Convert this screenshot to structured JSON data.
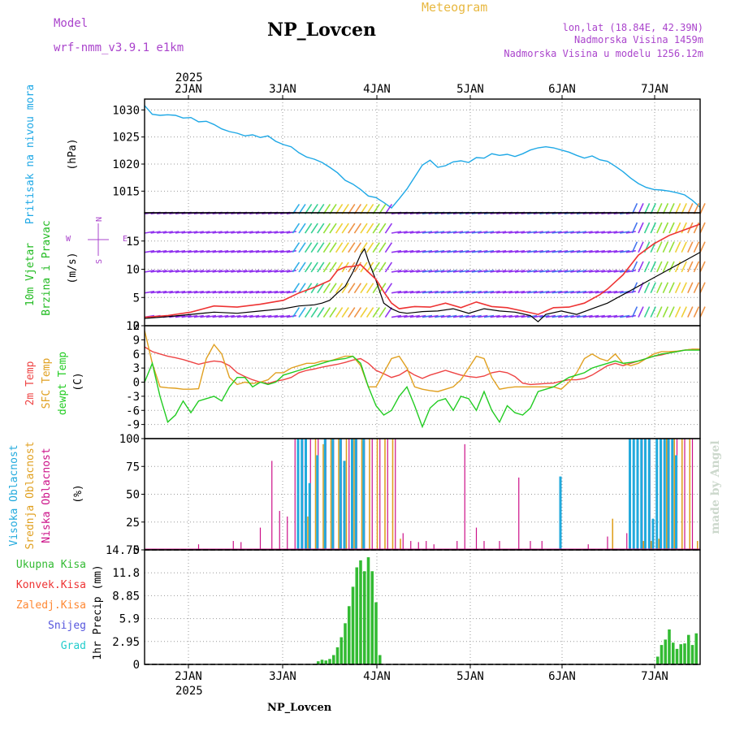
{
  "header": {
    "model_label": "Model",
    "model_name": "wrf-nmm_v3.9.1 e1km",
    "title": "NP_Lovcen",
    "meteogram_label": "Meteogram",
    "lonlat": "lon,lat (18.84E, 42.39N)",
    "elevation": "Nadmorska Visina 1459m",
    "model_elevation": "Nadmorska Visina u modelu 1256.12m",
    "footer_station": "NP_Lovcen",
    "watermark": "made by Angel"
  },
  "colors": {
    "pressure": "#1ea8e6",
    "temp2m": "#ee4444",
    "sfc_temp": "#e0a020",
    "dewpt": "#22cc22",
    "wind_avg": "#000000",
    "wind_gust": "#ee3333",
    "cloud_high": "#22aadd",
    "cloud_mid": "#e0a020",
    "cloud_low": "#cc1188",
    "precip_total": "#33bb33",
    "precip_conv": "#ee3333",
    "precip_frozen": "#ff8833",
    "precip_snow": "#5555dd",
    "precip_hail": "#22cccc",
    "wind_label": "#22bb22",
    "compass": "#aa44cc"
  },
  "chart_data": [
    {
      "type": "line",
      "panel": "pressure",
      "ylabel": "Pritisak na nivou mora",
      "unit": "(hPa)",
      "ylim": [
        1011,
        1032
      ],
      "yticks": [
        "1015",
        "1020",
        "1025",
        "1030"
      ],
      "x": [
        0,
        0.5,
        2,
        4,
        6,
        8,
        10,
        12,
        14,
        16,
        18,
        20,
        22,
        24,
        26,
        28,
        30,
        32,
        34,
        36,
        38,
        40,
        42,
        44,
        46,
        48,
        50,
        52,
        54,
        56,
        58,
        60,
        62,
        64,
        66,
        68,
        70,
        72,
        74,
        76,
        78,
        80,
        82,
        84,
        86,
        88,
        90,
        92,
        94,
        96,
        98,
        100,
        102,
        104,
        106,
        108,
        110,
        112,
        114,
        116,
        118,
        120,
        122,
        124,
        126,
        128,
        130,
        132,
        134,
        136,
        138,
        140,
        142,
        144
      ],
      "values": [
        1030.8,
        1030.4,
        1029.2,
        1029.0,
        1029.1,
        1029.0,
        1028.5,
        1028.6,
        1027.8,
        1027.9,
        1027.3,
        1026.5,
        1026.0,
        1025.7,
        1025.2,
        1025.4,
        1024.9,
        1025.2,
        1024.2,
        1023.6,
        1023.2,
        1022.1,
        1021.3,
        1020.9,
        1020.3,
        1019.4,
        1018.4,
        1017.0,
        1016.3,
        1015.3,
        1014.1,
        1013.8,
        1012.9,
        1011.9,
        1013.6,
        1015.4,
        1017.6,
        1019.8,
        1020.7,
        1019.4,
        1019.7,
        1020.4,
        1020.6,
        1020.3,
        1021.2,
        1021.1,
        1021.9,
        1021.6,
        1021.8,
        1021.4,
        1021.9,
        1022.6,
        1023.0,
        1023.2,
        1023.0,
        1022.6,
        1022.2,
        1021.6,
        1021.1,
        1021.5,
        1020.8,
        1020.5,
        1019.6,
        1018.6,
        1017.4,
        1016.4,
        1015.7,
        1015.3,
        1015.2,
        1015.0,
        1014.7,
        1014.3,
        1013.3,
        1012.0
      ]
    },
    {
      "type": "line",
      "panel": "wind",
      "ylabel": "10m Vjetar Brzina i Pravac",
      "unit": "(m/s)",
      "ylim": [
        0,
        20
      ],
      "yticks": [
        "0",
        "5",
        "10",
        "15"
      ],
      "compass": {
        "n": "N",
        "s": "S",
        "e": "E",
        "w": "W"
      },
      "series": [
        {
          "key": "avg",
          "x": [
            0,
            6,
            12,
            18,
            24,
            30,
            36,
            40,
            44,
            46,
            48,
            50,
            52,
            54,
            56,
            57,
            58,
            60,
            62,
            64,
            66,
            68,
            72,
            76,
            80,
            84,
            88,
            92,
            96,
            100,
            102,
            104,
            108,
            112,
            116,
            120,
            124,
            128,
            132,
            136,
            140,
            144
          ],
          "values": [
            1.3,
            1.6,
            2.0,
            2.4,
            2.2,
            2.6,
            3.0,
            3.5,
            3.7,
            4.0,
            4.5,
            5.8,
            7.0,
            9.5,
            12.6,
            13.6,
            11.5,
            8.0,
            4.0,
            3.0,
            2.4,
            2.2,
            2.5,
            2.6,
            3.0,
            2.2,
            3.0,
            2.6,
            2.4,
            1.8,
            0.7,
            2.0,
            2.6,
            2.0,
            3.0,
            4.0,
            5.5,
            7.0,
            8.5,
            10.0,
            11.5,
            13.0
          ]
        },
        {
          "key": "gust",
          "x": [
            0,
            6,
            12,
            18,
            24,
            30,
            36,
            40,
            44,
            48,
            50,
            52,
            54,
            56,
            58,
            60,
            62,
            64,
            66,
            70,
            74,
            78,
            82,
            86,
            90,
            94,
            98,
            102,
            106,
            110,
            114,
            118,
            120,
            124,
            128,
            132,
            136,
            140,
            144
          ],
          "values": [
            1.5,
            1.8,
            2.4,
            3.5,
            3.3,
            3.8,
            4.5,
            5.8,
            6.8,
            8.0,
            9.8,
            10.4,
            10.5,
            10.8,
            9.5,
            8.2,
            6.0,
            4.0,
            3.0,
            3.4,
            3.3,
            4.0,
            3.2,
            4.2,
            3.4,
            3.2,
            2.6,
            2.0,
            3.2,
            3.3,
            4.0,
            5.5,
            6.5,
            9.0,
            12.5,
            14.5,
            16.0,
            17.0,
            18.0
          ]
        }
      ]
    },
    {
      "type": "line",
      "panel": "temperature",
      "ylabels": [
        "2m Temp",
        "SFC Temp",
        "dewpt Temp"
      ],
      "unit": "(C)",
      "ylim": [
        -12,
        12
      ],
      "yticks": [
        "-9",
        "-6",
        "-3",
        "0",
        "3",
        "6",
        "9",
        "12"
      ],
      "series": [
        {
          "key": "t2m",
          "x": [
            0,
            2,
            4,
            6,
            8,
            10,
            12,
            14,
            16,
            18,
            20,
            22,
            24,
            26,
            28,
            30,
            32,
            34,
            36,
            38,
            40,
            42,
            44,
            46,
            48,
            50,
            52,
            54,
            56,
            58,
            60,
            62,
            64,
            66,
            68,
            70,
            72,
            74,
            76,
            78,
            80,
            82,
            84,
            86,
            88,
            90,
            92,
            94,
            96,
            98,
            100,
            102,
            104,
            106,
            108,
            110,
            112,
            114,
            116,
            118,
            120,
            122,
            124,
            126,
            128,
            130,
            132,
            134,
            136,
            138,
            140,
            142,
            144
          ],
          "values": [
            7.5,
            6.5,
            6.0,
            5.5,
            5.2,
            4.8,
            4.3,
            3.8,
            4.2,
            4.5,
            4.3,
            3.5,
            2.0,
            1.2,
            0.5,
            0.0,
            -0.3,
            0.2,
            0.5,
            1.0,
            2.0,
            2.5,
            2.8,
            3.2,
            3.5,
            3.8,
            4.2,
            4.7,
            5.0,
            4.0,
            2.5,
            1.8,
            1.0,
            1.5,
            2.5,
            1.5,
            0.8,
            1.5,
            2.0,
            2.5,
            2.0,
            1.5,
            1.2,
            1.0,
            1.3,
            2.0,
            2.3,
            2.0,
            1.2,
            -0.2,
            -0.5,
            -0.4,
            -0.3,
            -0.2,
            0.2,
            0.5,
            0.5,
            0.8,
            1.5,
            2.5,
            3.5,
            4.0,
            3.5,
            4.0,
            4.5,
            5.0,
            5.5,
            5.8,
            6.2,
            6.5,
            6.8,
            7.0,
            7.0
          ]
        },
        {
          "key": "sfc",
          "x": [
            0,
            2,
            4,
            6,
            8,
            10,
            12,
            14,
            16,
            18,
            20,
            22,
            24,
            26,
            28,
            30,
            32,
            34,
            36,
            38,
            40,
            42,
            44,
            46,
            48,
            50,
            52,
            54,
            56,
            58,
            60,
            62,
            64,
            66,
            68,
            70,
            72,
            74,
            76,
            78,
            80,
            82,
            84,
            86,
            88,
            90,
            92,
            94,
            96,
            98,
            100,
            102,
            104,
            106,
            108,
            110,
            112,
            114,
            116,
            118,
            120,
            122,
            124,
            126,
            128,
            130,
            132,
            134,
            136,
            138,
            140,
            142,
            144
          ],
          "values": [
            11.0,
            4.0,
            -1.0,
            -1.2,
            -1.3,
            -1.5,
            -1.5,
            -1.4,
            5.0,
            8.0,
            6.0,
            1.0,
            -0.5,
            0.0,
            -0.3,
            0.0,
            0.5,
            2.0,
            2.0,
            3.0,
            3.5,
            4.0,
            4.0,
            4.5,
            4.5,
            5.0,
            5.5,
            5.5,
            3.5,
            -1.0,
            -1.0,
            2.0,
            5.0,
            5.5,
            3.0,
            -1.0,
            -1.5,
            -1.8,
            -2.0,
            -1.5,
            -1.0,
            0.5,
            3.0,
            5.5,
            5.0,
            1.0,
            -1.5,
            -1.2,
            -1.0,
            -1.0,
            -1.0,
            -1.0,
            -1.0,
            -1.0,
            -1.5,
            0.0,
            2.0,
            5.0,
            6.0,
            5.0,
            4.5,
            6.0,
            4.0,
            3.5,
            4.0,
            5.0,
            6.0,
            6.5,
            6.5,
            6.6,
            6.8,
            7.0,
            7.0
          ]
        },
        {
          "key": "dew",
          "x": [
            0,
            2,
            4,
            6,
            8,
            10,
            12,
            14,
            16,
            18,
            20,
            22,
            24,
            26,
            28,
            30,
            32,
            34,
            36,
            38,
            40,
            42,
            44,
            46,
            48,
            50,
            52,
            54,
            56,
            58,
            60,
            62,
            64,
            66,
            68,
            70,
            72,
            74,
            76,
            78,
            80,
            82,
            84,
            86,
            88,
            90,
            92,
            94,
            96,
            98,
            100,
            102,
            104,
            106,
            108,
            110,
            112,
            114,
            116,
            118,
            120,
            122,
            124,
            126,
            128,
            130,
            132,
            134,
            136,
            138,
            140,
            142,
            144
          ],
          "values": [
            0.0,
            4.0,
            -3.0,
            -8.5,
            -7.0,
            -4.0,
            -6.5,
            -4.0,
            -3.5,
            -3.0,
            -4.0,
            -1.0,
            1.0,
            1.0,
            -1.0,
            0.0,
            -0.5,
            0.0,
            1.5,
            2.0,
            2.5,
            3.0,
            3.5,
            4.0,
            4.5,
            4.8,
            5.0,
            5.5,
            4.0,
            -1.0,
            -5.0,
            -7.0,
            -6.0,
            -3.0,
            -1.0,
            -5.0,
            -9.5,
            -5.5,
            -4.0,
            -3.5,
            -6.0,
            -3.0,
            -3.5,
            -6.0,
            -2.0,
            -6.0,
            -8.5,
            -5.0,
            -6.5,
            -7.0,
            -5.5,
            -2.0,
            -1.5,
            -1.0,
            0.0,
            1.0,
            1.5,
            2.0,
            3.0,
            3.5,
            4.0,
            4.5,
            4.0,
            4.2,
            4.5,
            5.0,
            5.5,
            6.0,
            6.2,
            6.5,
            6.8,
            6.8,
            6.8
          ]
        }
      ]
    },
    {
      "type": "bar",
      "panel": "clouds",
      "ylabels": [
        "Visoka Oblacnost",
        "Srednja Oblacnost",
        "Niska Oblacnost"
      ],
      "unit": "(%)",
      "ylim": [
        0,
        100
      ],
      "yticks": [
        "0",
        "25",
        "50",
        "75",
        "100"
      ],
      "series": [
        {
          "key": "low",
          "x": [
            14,
            23,
            25,
            30,
            33,
            35,
            37,
            39,
            41,
            43,
            45,
            47,
            49,
            51,
            53,
            55,
            57,
            59,
            61,
            63,
            65,
            67,
            69,
            71,
            73,
            75,
            81,
            83,
            86,
            88,
            92,
            97,
            100,
            103,
            115,
            120,
            125,
            129,
            131,
            134,
            136,
            138,
            140,
            142
          ],
          "values": [
            5,
            8,
            7,
            20,
            80,
            35,
            30,
            100,
            100,
            100,
            100,
            100,
            100,
            100,
            100,
            100,
            100,
            100,
            100,
            100,
            100,
            15,
            8,
            7,
            8,
            5,
            8,
            95,
            20,
            8,
            8,
            65,
            8,
            8,
            5,
            12,
            15,
            100,
            100,
            100,
            100,
            100,
            100,
            100
          ]
        },
        {
          "key": "mid",
          "x": [
            42,
            44,
            46,
            48,
            50,
            52,
            54,
            56,
            58,
            60,
            62,
            64,
            66,
            121,
            129,
            131,
            133,
            135,
            137,
            139,
            141,
            143
          ],
          "values": [
            30,
            100,
            95,
            100,
            100,
            100,
            100,
            100,
            100,
            100,
            100,
            100,
            10,
            28,
            8,
            8,
            10,
            100,
            100,
            100,
            100,
            8
          ]
        },
        {
          "key": "high",
          "x": [
            40,
            41,
            42,
            43,
            45,
            47,
            49,
            51,
            52,
            54,
            55,
            57,
            108,
            126,
            127,
            128,
            129,
            130,
            131,
            132,
            133,
            134,
            135,
            136,
            137,
            138
          ],
          "values": [
            100,
            100,
            100,
            60,
            85,
            100,
            100,
            100,
            80,
            100,
            100,
            100,
            66,
            100,
            100,
            100,
            100,
            100,
            100,
            28,
            100,
            100,
            100,
            100,
            100,
            85
          ]
        }
      ]
    },
    {
      "type": "bar",
      "panel": "precip",
      "ylabel": "1hr Precip",
      "unit": "(mm)",
      "ylim": [
        0,
        14.75
      ],
      "yticks": [
        "0",
        "2.95",
        "5.9",
        "8.85",
        "11.8",
        "14.75"
      ],
      "legend": [
        "Ukupna Kisa",
        "Konvek.Kisa",
        "Zaledj.Kisa",
        "Snijeg",
        "Grad"
      ],
      "x": [
        45,
        46,
        47,
        48,
        49,
        50,
        51,
        52,
        53,
        54,
        55,
        56,
        57,
        58,
        59,
        60,
        61,
        133,
        134,
        135,
        136,
        137,
        138,
        139,
        140,
        141,
        142,
        143
      ],
      "values": [
        0.4,
        0.6,
        0.5,
        0.7,
        1.2,
        2.2,
        3.5,
        5.3,
        7.5,
        10.0,
        12.5,
        13.4,
        12.0,
        13.8,
        12.0,
        8.0,
        1.2,
        1.0,
        2.5,
        3.2,
        4.5,
        2.8,
        2.0,
        2.6,
        2.7,
        3.8,
        2.5,
        4.0
      ]
    }
  ],
  "xaxis": {
    "year": "2025",
    "top_days": [
      "2JAN",
      "3JAN",
      "4JAN",
      "5JAN",
      "6JAN",
      "7JAN"
    ],
    "bottom_days": [
      "2JAN",
      "3JAN",
      "4JAN",
      "5JAN",
      "6JAN",
      "7JAN"
    ],
    "bottom_year": "2025"
  }
}
